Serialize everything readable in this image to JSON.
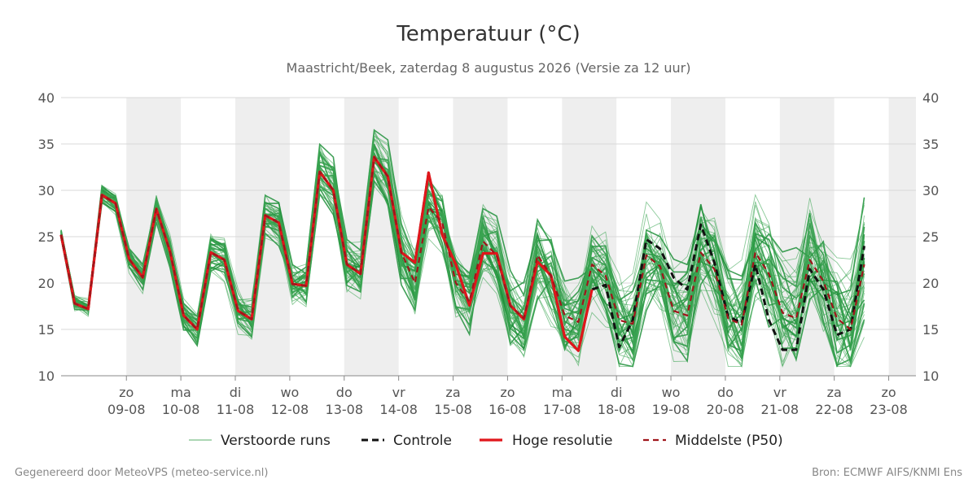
{
  "chart_data": {
    "type": "line",
    "title": "Temperatuur (°C)",
    "subtitle": "Maastricht/Beek, zaterdag  8 augustus 2026 (Versie za 12 uur)",
    "ylim": [
      10,
      40
    ],
    "yticks": [
      10,
      15,
      20,
      25,
      30,
      35,
      40
    ],
    "x_start_day": 7.8,
    "x_end_day": 23.5,
    "x_step_days": 0.25,
    "day_ticks": [
      {
        "day_label": "zo",
        "date_label": "09-08",
        "day": 9
      },
      {
        "day_label": "ma",
        "date_label": "10-08",
        "day": 10
      },
      {
        "day_label": "di",
        "date_label": "11-08",
        "day": 11
      },
      {
        "day_label": "wo",
        "date_label": "12-08",
        "day": 12
      },
      {
        "day_label": "do",
        "date_label": "13-08",
        "day": 13
      },
      {
        "day_label": "vr",
        "date_label": "14-08",
        "day": 14
      },
      {
        "day_label": "za",
        "date_label": "15-08",
        "day": 15
      },
      {
        "day_label": "zo",
        "date_label": "16-08",
        "day": 16
      },
      {
        "day_label": "ma",
        "date_label": "17-08",
        "day": 17
      },
      {
        "day_label": "di",
        "date_label": "18-08",
        "day": 18
      },
      {
        "day_label": "wo",
        "date_label": "19-08",
        "day": 19
      },
      {
        "day_label": "do",
        "date_label": "20-08",
        "day": 20
      },
      {
        "day_label": "vr",
        "date_label": "21-08",
        "day": 21
      },
      {
        "day_label": "za",
        "date_label": "22-08",
        "day": 22
      },
      {
        "day_label": "zo",
        "date_label": "23-08",
        "day": 23
      }
    ],
    "shaded_days": [
      9,
      11,
      13,
      15,
      17,
      19,
      21,
      23
    ],
    "grid": true,
    "legend_position": "bottom",
    "ensemble_count": 50,
    "ensemble_spread_base": 0.7,
    "ensemble_spread_growth": 0.35,
    "series": [
      {
        "name": "Verstoorde runs",
        "style": "thin-solid",
        "color": "#2e9b44",
        "start_day": 7.8,
        "values": []
      },
      {
        "name": "Controle",
        "style": "dashed",
        "color": "#111111",
        "start_day": 7.8,
        "values": [
          25.2,
          17.8,
          17.2,
          29.5,
          28.6,
          22.6,
          20.6,
          28.0,
          23.4,
          16.5,
          15.0,
          23.3,
          22.5,
          17.0,
          16.1,
          27.3,
          26.5,
          19.9,
          19.7,
          32.0,
          30.0,
          22.0,
          21.0,
          33.6,
          31.5,
          23.3,
          22.2,
          31.9,
          25.2,
          22.0,
          17.6,
          23.2,
          23.2,
          17.6,
          16.1,
          22.3,
          20.8,
          14.2,
          12.7,
          19.3,
          19.8,
          13.1,
          16.0,
          24.7,
          23.7,
          20.6,
          19.3,
          26.3,
          22.2,
          16.4,
          15.7,
          22.0,
          16.0,
          12.8,
          12.8,
          21.5,
          19.3,
          14.4,
          15.0,
          24.0
        ]
      },
      {
        "name": "Hoge resolutie",
        "style": "thick-solid",
        "color": "#e0161b",
        "start_day": 7.8,
        "values": [
          25.2,
          17.8,
          17.2,
          29.5,
          28.6,
          22.6,
          20.6,
          28.0,
          23.4,
          16.5,
          15.0,
          23.3,
          22.5,
          17.0,
          16.1,
          27.3,
          26.5,
          19.9,
          19.7,
          32.0,
          30.0,
          22.0,
          21.0,
          33.6,
          31.5,
          23.3,
          22.2,
          31.9,
          25.2,
          22.0,
          17.6,
          23.2,
          23.2,
          17.6,
          16.1,
          22.3,
          20.8,
          14.2,
          12.7,
          19.3
        ]
      },
      {
        "name": "Middelste (P50)",
        "style": "dashed",
        "color": "#a0151b",
        "start_day": 7.8,
        "values": [
          25.2,
          17.8,
          17.2,
          29.5,
          28.6,
          22.6,
          20.6,
          28.0,
          23.4,
          16.5,
          15.0,
          23.3,
          22.5,
          17.0,
          16.1,
          27.3,
          26.5,
          19.9,
          19.7,
          32.0,
          30.0,
          22.0,
          21.0,
          33.6,
          31.5,
          23.3,
          20.0,
          28.2,
          26.5,
          20.0,
          18.0,
          24.5,
          23.0,
          17.5,
          16.2,
          23.0,
          20.8,
          16.5,
          15.8,
          22.0,
          20.8,
          16.0,
          15.6,
          23.0,
          21.8,
          17.0,
          16.5,
          23.3,
          21.5,
          16.2,
          15.5,
          23.3,
          21.0,
          16.8,
          16.2,
          22.5,
          20.2,
          16.2,
          15.0,
          22.0
        ]
      }
    ],
    "footer_left": "Gegenereerd door MeteoVPS (meteo-service.nl)",
    "footer_right": "Bron: ECMWF AIFS/KNMI Ens"
  }
}
